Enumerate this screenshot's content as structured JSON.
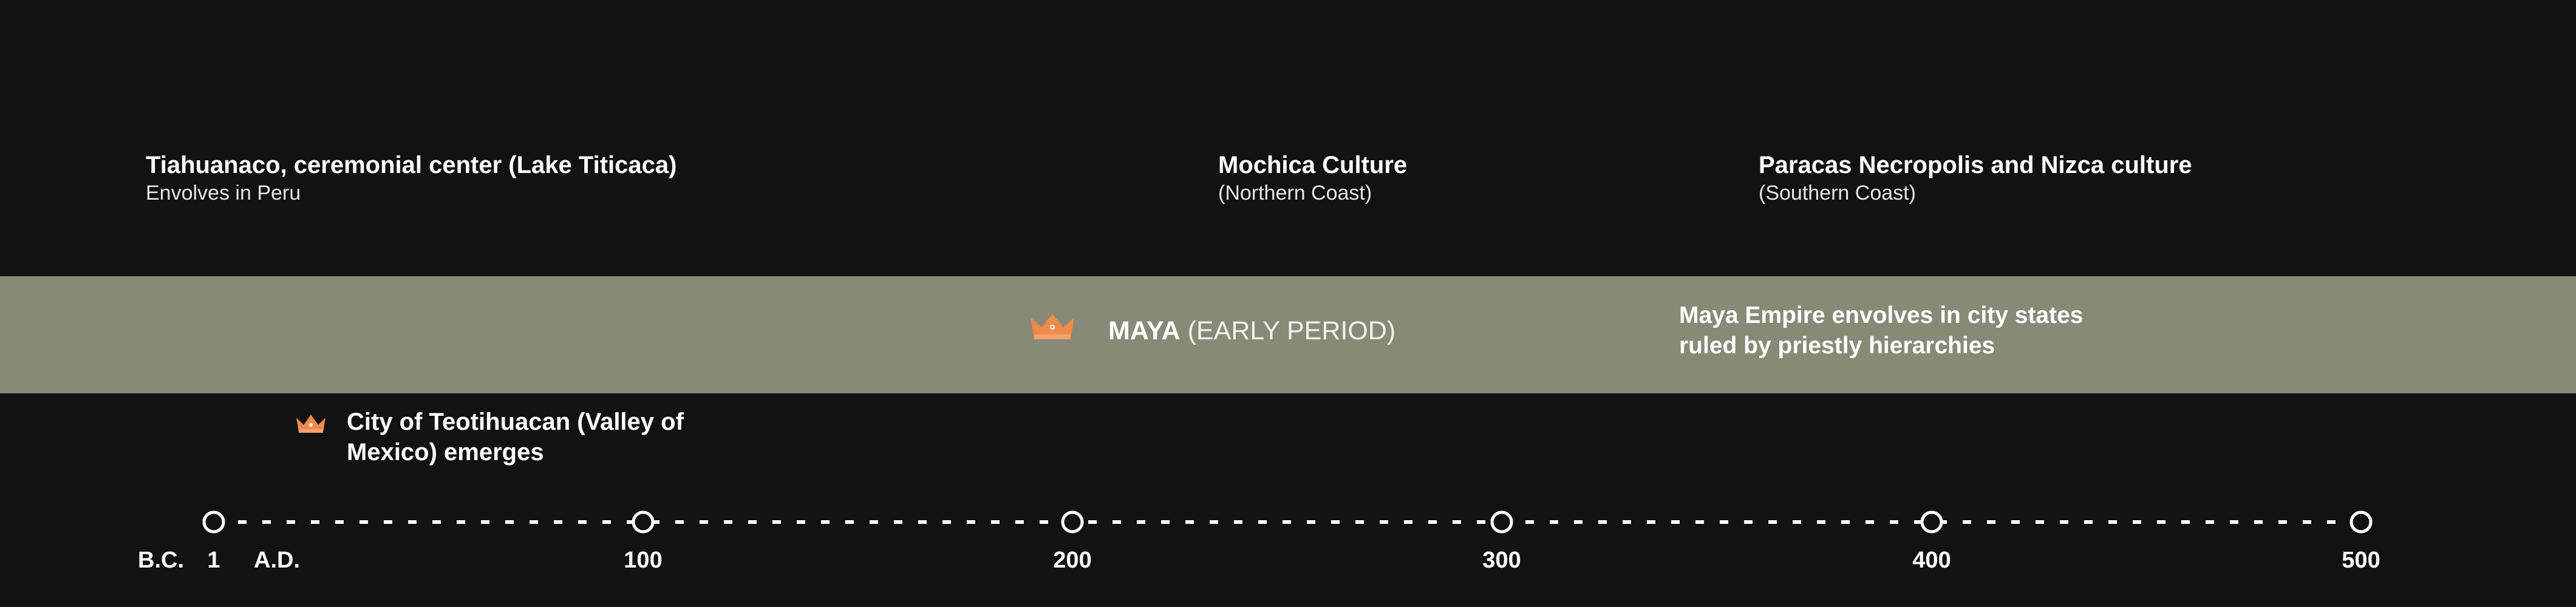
{
  "events_top": {
    "tiahuanaco": {
      "title": "Tiahuanaco, ceremonial center (Lake Titicaca)",
      "subtitle": "Envolves in Peru"
    },
    "mochica": {
      "title": "Mochica Culture",
      "subtitle": "(Northern Coast)"
    },
    "paracas": {
      "title": "Paracas Necropolis and Nizca culture",
      "subtitle": "(Southern Coast)"
    }
  },
  "maya_band": {
    "name_bold": "MAYA",
    "name_light": " (EARLY PERIOD)",
    "note_line1": "Maya Empire envolves in city states",
    "note_line2": "ruled by priestly hierarchies",
    "band_color": "#888a78",
    "icon": "crown-icon"
  },
  "teotihuacan": {
    "line1": "City of Teotihuacan (Valley of",
    "line2": "Mexico) emerges",
    "icon": "crown-icon"
  },
  "timeline": {
    "era_before": "B.C.",
    "era_after": "A.D.",
    "ticks": [
      "1",
      "100",
      "200",
      "300",
      "400",
      "500"
    ]
  },
  "colors": {
    "background": "#121212",
    "accent": "#f08a4b",
    "text": "#ffffff"
  }
}
